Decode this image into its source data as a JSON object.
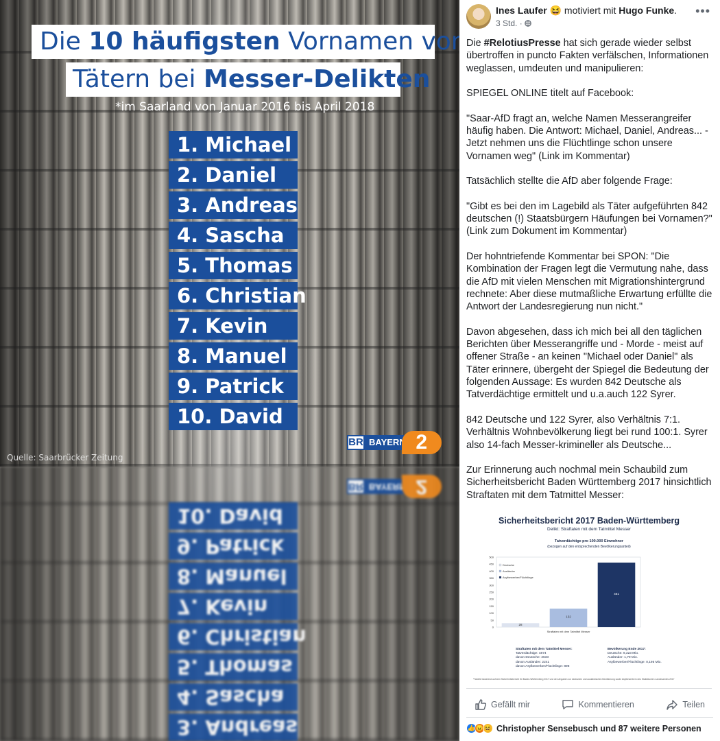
{
  "image": {
    "title_line1_prefix": "Die ",
    "title_line1_bold": "10 häufigsten",
    "title_line1_suffix": " Vornamen von",
    "title_line2_prefix": "Tätern bei ",
    "title_line2_bold": "Messer-Delikten",
    "subtitle": "*im Saarland von Januar 2016 bis April 2018",
    "names": [
      "1. Michael",
      "2. Daniel",
      "3. Andreas",
      "4. Sascha",
      "5. Thomas",
      "6. Christian",
      "7. Kevin",
      "8. Manuel",
      "9. Patrick",
      "10. David"
    ],
    "reflected_names": [
      "10. David",
      "9. Patrick",
      "8. Manuel",
      "7. Kevin",
      "6. Christian",
      "5. Thomas",
      "4. Sascha",
      "3. Andreas"
    ],
    "source": "Quelle: Saarbrücker Zeitung",
    "logo_mark": "BR",
    "logo_word": "BAYERN",
    "logo_number": "2",
    "accent_color": "#1b4f9c",
    "logo_orange": "#f08a1e"
  },
  "post": {
    "author": "Ines Laufer",
    "emoji": "😆",
    "feeling_text": " motiviert mit ",
    "tagged": "Hugo Funke",
    "tagged_suffix": ".",
    "time": "3 Std. · ",
    "privacy_icon": "globe-icon",
    "more_icon": "•••",
    "p1_prefix": "Die ",
    "p1_hashtag": "#RelotiusPresse",
    "p1_rest": " hat sich gerade wieder selbst übertroffen in puncto Fakten verfälschen, Informationen weglassen, umdeuten und manipulieren:",
    "p2": "SPIEGEL ONLINE titelt auf Facebook:",
    "p3": "\"Saar-AfD fragt an, welche Namen Messerangreifer häufig haben. Die Antwort: Michael, Daniel, Andreas... - Jetzt nehmen uns die Flüchtlinge schon unsere Vornamen weg\" (Link im Kommentar)",
    "p4": "Tatsächlich stellte die AfD aber folgende Frage:",
    "p5": "\"Gibt es bei den im Lagebild als Täter aufgeführten 842 deutschen (!) Staatsbürgern Häufungen bei Vornamen?\" (Link zum Dokument im Kommentar)",
    "p6": "Der hohntriefende Kommentar bei SPON: \"Die Kombination der Fragen legt die Vermutung nahe, dass die AfD mit vielen Menschen mit Migrationshintergrund rechnete: Aber diese mutmaßliche Erwartung erfüllte die Antwort der Landesregierung nun nicht.\"",
    "p7": "Davon abgesehen, dass ich mich bei all den täglichen Berichten über Messerangriffe und - Morde - meist auf offener Straße - an keinen \"Michael oder Daniel\" als Täter erinnere, übergeht der Spiegel die Bedeutung der folgenden Aussage: Es wurden 842 Deutsche als Tatverdächtige ermittelt und u.a.auch 122 Syrer.",
    "p8": "842 Deutsche und 122 Syrer, also Verhältnis 7:1. Verhältnis Wohnbevölkerung liegt bei rund 100:1. Syrer also 14-fach Messer-krimineller als Deutsche...",
    "p9": "Zur Erinnerung auch nochmal mein Schaubild zum Sicherheitsbericht Baden Württemberg 2017 hinsichtlich Straftaten mit dem Tatmittel Messer:"
  },
  "chart_data": {
    "type": "bar",
    "title": "Sicherheitsbericht 2017 Baden-Württemberg",
    "subtitle": "Delikt: Straftaten mit dem Tatmittel Messer",
    "heading": "Tatverdächtige pro 100.000 Einwohner",
    "heading_note": "(bezogen auf den entsprechenden Bevölkerungsanteil)",
    "xlabel": "Straftaten mit dem Tatmittel Messer",
    "ylim": [
      0,
      500
    ],
    "yticks": [
      0,
      50,
      100,
      150,
      200,
      250,
      300,
      350,
      400,
      450,
      500
    ],
    "series": [
      {
        "name": "Deutsche",
        "value": 28,
        "color": "#dde3ef"
      },
      {
        "name": "Ausländer",
        "value": 132,
        "color": "#a9bde0"
      },
      {
        "name": "Asylbewerber/Flüchtlinge",
        "value": 461,
        "color": "#1e3565"
      }
    ],
    "stats_left": [
      "Straftaten mit dem Tatmittel Messer:",
      "Tatverdächtige: 4874",
      "davon Deutsche: 2633",
      "davon Ausländer: 2241",
      "davon Asylbewerber/Flüchtlinge: 898"
    ],
    "stats_right": [
      "Bevölkerung Ende 2017:",
      "Deutsche: 9,323 Mio.",
      "Ausländer: 1,70 Mio.",
      "Asylbewerber/Flüchtlinge: 0,195 Mio."
    ],
    "footnote": "*Tabelle basierend auf dem Sicherheitsbericht für Baden-Württemberg 2017 und den Angaben zur deutschen und ausländischen Bevölkerung sowie Asylbewerbern des Statistischen Landesamtes 2017"
  },
  "actions": {
    "like": "Gefällt mir",
    "comment": "Kommentieren",
    "share": "Teilen"
  },
  "reactions": {
    "text": "Christopher Sensebusch und 87 weitere Personen",
    "icons": [
      "like-reaction-icon",
      "angry-reaction-icon",
      "haha-reaction-icon"
    ]
  }
}
